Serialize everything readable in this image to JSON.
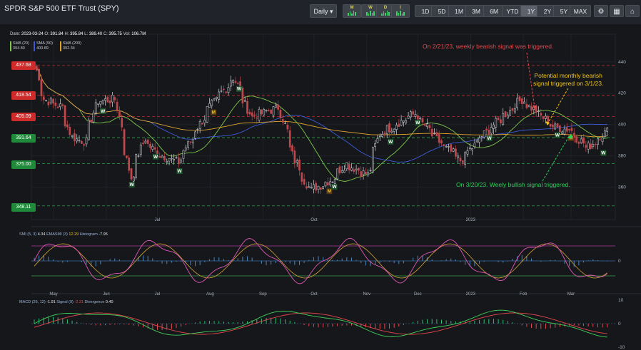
{
  "header": {
    "title": "SPDR S&P 500 ETF Trust (SPY)",
    "interval_label": "Daily ▾",
    "indicator_buttons": [
      {
        "letter": "M",
        "name": "monthly-signal"
      },
      {
        "letter": "W",
        "name": "weekly-signal"
      },
      {
        "letter": "D",
        "name": "daily-signal"
      },
      {
        "letter": "I",
        "name": "intraday-signal"
      }
    ],
    "periods": [
      "1D",
      "5D",
      "1M",
      "3M",
      "6M",
      "YTD",
      "1Y",
      "2Y",
      "5Y",
      "MAX"
    ],
    "active_period": "1Y",
    "tools": [
      "settings-icon",
      "calculator-icon",
      "bank-icon"
    ]
  },
  "info": {
    "date_label": "Date:",
    "date": "2023-03-24",
    "open_label": "O:",
    "open": "391.84",
    "high_label": "H:",
    "high": "395.84",
    "low_label": "L:",
    "low": "389.40",
    "close_label": "C:",
    "close": "395.75",
    "vol_label": "Vol:",
    "vol": "106.7M"
  },
  "ma_legend": [
    {
      "label": "SMA (20)",
      "value": "394.80",
      "color": "#7fc94b"
    },
    {
      "label": "SMA (50)",
      "value": "400.89",
      "color": "#3d5bd6"
    },
    {
      "label": "SMA (200)",
      "value": "392.34",
      "color": "#e0a32e"
    }
  ],
  "levels": [
    {
      "value": "437.68",
      "type": "resistance"
    },
    {
      "value": "418.54",
      "type": "resistance"
    },
    {
      "value": "405.09",
      "type": "resistance"
    },
    {
      "value": "391.64",
      "type": "support"
    },
    {
      "value": "375.00",
      "type": "support"
    },
    {
      "value": "348.11",
      "type": "support"
    }
  ],
  "annotations": {
    "weekly_bearish": "On 2/21/23, weekly bearish signal was triggered.",
    "monthly_bearish_line1": "Potential monthly bearish",
    "monthly_bearish_line2": "signal triggered on 3/1/23.",
    "weekly_bullish": "On 3/20/23. Weely bullish signal triggered."
  },
  "colors": {
    "bull": "#2fbf71",
    "bear": "#e5484d",
    "bearish_note": "#e5484d",
    "monthly_note": "#f0c419",
    "bullish_note": "#2fd05c"
  },
  "smi_label": {
    "name": "SMI (5, 3)",
    "value": "4.34",
    "ema_name": "EMASMI (3)",
    "ema_value": "12.29",
    "hist_name": "Histogram",
    "hist_value": "-7.95"
  },
  "macd_label": {
    "name": "MACD (26, 12)",
    "value": "-1.91",
    "signal_name": "Signal (9)",
    "signal_value": "-2.31",
    "div_name": "Divergence",
    "div_value": "0.40"
  },
  "chart_data": {
    "type": "candlestick",
    "title": "SPDR S&P 500 ETF Trust (SPY)",
    "x_tick_labels": [
      "Jul",
      "Oct",
      "2023"
    ],
    "month_axis_labels": [
      "May",
      "Jun",
      "Jul",
      "Aug",
      "Sep",
      "Oct",
      "Nov",
      "Dec",
      "2023",
      "Feb",
      "Mar"
    ],
    "y_tick_labels": [
      "440",
      "420",
      "400",
      "380",
      "360"
    ],
    "ylim": [
      343,
      454
    ],
    "price_path": [
      {
        "date": "2022-04-20",
        "close": 438
      },
      {
        "date": "2022-04-26",
        "close": 416
      },
      {
        "date": "2022-05-06",
        "close": 411
      },
      {
        "date": "2022-05-12",
        "close": 392
      },
      {
        "date": "2022-05-20",
        "close": 389
      },
      {
        "date": "2022-05-27",
        "close": 415
      },
      {
        "date": "2022-06-07",
        "close": 416
      },
      {
        "date": "2022-06-16",
        "close": 366
      },
      {
        "date": "2022-06-24",
        "close": 391
      },
      {
        "date": "2022-07-01",
        "close": 382
      },
      {
        "date": "2022-07-14",
        "close": 376
      },
      {
        "date": "2022-08-01",
        "close": 410
      },
      {
        "date": "2022-08-16",
        "close": 430
      },
      {
        "date": "2022-08-26",
        "close": 405
      },
      {
        "date": "2022-09-12",
        "close": 411
      },
      {
        "date": "2022-09-21",
        "close": 377
      },
      {
        "date": "2022-09-30",
        "close": 358
      },
      {
        "date": "2022-10-13",
        "close": 365
      },
      {
        "date": "2022-10-21",
        "close": 375
      },
      {
        "date": "2022-11-03",
        "close": 368
      },
      {
        "date": "2022-11-10",
        "close": 394
      },
      {
        "date": "2022-12-01",
        "close": 407
      },
      {
        "date": "2022-12-15",
        "close": 389
      },
      {
        "date": "2022-12-28",
        "close": 377
      },
      {
        "date": "2023-01-12",
        "close": 395
      },
      {
        "date": "2023-02-02",
        "close": 416
      },
      {
        "date": "2023-02-22",
        "close": 398
      },
      {
        "date": "2023-03-02",
        "close": 397
      },
      {
        "date": "2023-03-13",
        "close": 385
      },
      {
        "date": "2023-03-24",
        "close": 395.75
      }
    ],
    "moving_averages": [
      "SMA (20)",
      "SMA (50)",
      "SMA (200)"
    ],
    "signals": [
      {
        "date": "2022-05-30",
        "label": "W"
      },
      {
        "date": "2022-06-16",
        "label": "W"
      },
      {
        "date": "2022-06-30",
        "label": "W"
      },
      {
        "date": "2022-07-14",
        "label": "W"
      },
      {
        "date": "2022-08-03",
        "label": "M"
      },
      {
        "date": "2022-08-18",
        "label": "W"
      },
      {
        "date": "2022-10-10",
        "label": "M"
      },
      {
        "date": "2022-10-13",
        "label": "W"
      },
      {
        "date": "2022-11-15",
        "label": "W"
      },
      {
        "date": "2022-12-01",
        "label": "W"
      },
      {
        "date": "2023-01-12",
        "label": "W"
      },
      {
        "date": "2023-02-21",
        "label": "W"
      },
      {
        "date": "2023-03-01",
        "label": "M"
      },
      {
        "date": "2023-03-20",
        "label": "W"
      }
    ],
    "smi_levels": [
      40,
      0,
      -40
    ],
    "macd_y_ticks": [
      "10",
      "0",
      "-10"
    ]
  }
}
